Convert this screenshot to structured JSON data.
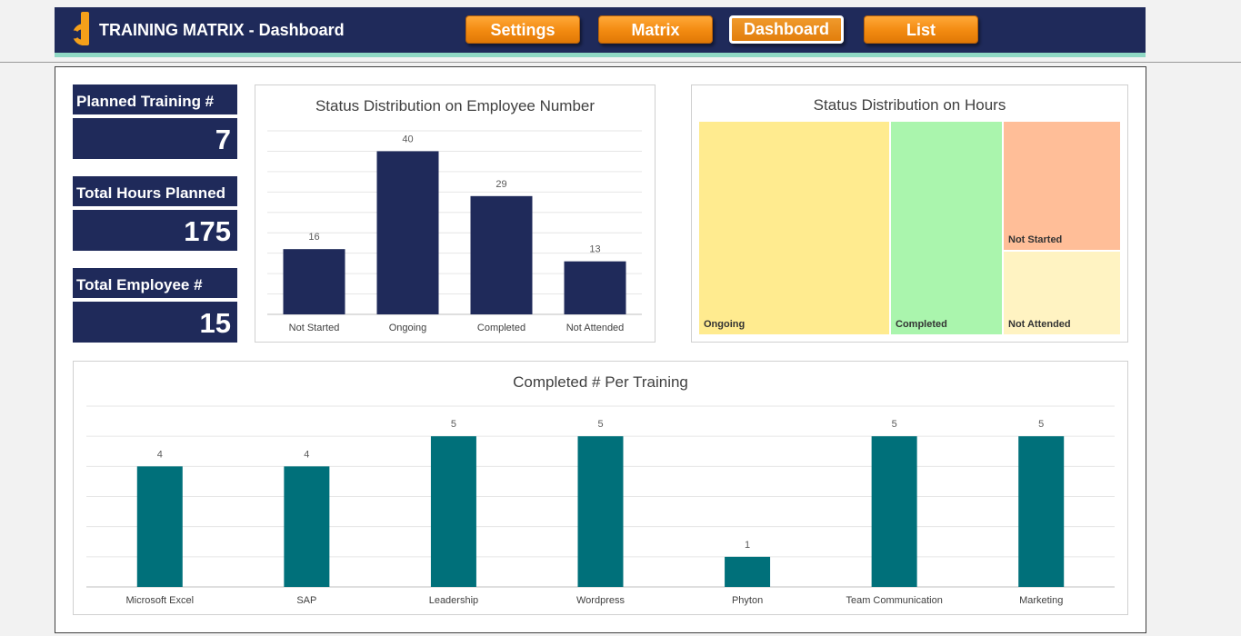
{
  "app": {
    "title": "TRAINING MATRIX - Dashboard",
    "logo_icon": "d-logo-icon",
    "logo_color": "#f5a01a"
  },
  "nav": [
    {
      "label": "Settings",
      "active": false
    },
    {
      "label": "Matrix",
      "active": false
    },
    {
      "label": "Dashboard",
      "active": true
    },
    {
      "label": "List",
      "active": false
    }
  ],
  "kpis": [
    {
      "label": "Planned Training #",
      "value": "7"
    },
    {
      "label": "Total Hours Planned",
      "value": "175"
    },
    {
      "label": "Total Employee #",
      "value": "15"
    }
  ],
  "colors": {
    "navy": "#1f2a5a",
    "teal": "#00707a",
    "accent_stripe": "#8fd8c4",
    "button_orange": "#f28a10"
  },
  "chart_data": [
    {
      "id": "status-employee",
      "type": "bar",
      "title": "Status Distribution on Employee Number",
      "categories": [
        "Not Started",
        "Ongoing",
        "Completed",
        "Not Attended"
      ],
      "values": [
        16,
        40,
        29,
        13
      ],
      "ylim": [
        0,
        45
      ],
      "grid": true,
      "color": "#1f2a5a"
    },
    {
      "id": "status-hours",
      "type": "treemap",
      "title": "Status Distribution on Hours",
      "items": [
        {
          "label": "Ongoing",
          "color": "#ffeb8f"
        },
        {
          "label": "Completed",
          "color": "#aaf5ad"
        },
        {
          "label": "Not Started",
          "color": "#ffbe98"
        },
        {
          "label": "Not Attended",
          "color": "#fff3c2"
        }
      ]
    },
    {
      "id": "completed-per-training",
      "type": "bar",
      "title": "Completed # Per Training",
      "categories": [
        "Microsoft Excel",
        "SAP",
        "Leadership",
        "Wordpress",
        "Phyton",
        "Team Communication",
        "Marketing"
      ],
      "values": [
        4,
        4,
        5,
        5,
        1,
        5,
        5
      ],
      "ylim": [
        0,
        6
      ],
      "grid": true,
      "color": "#00707a"
    }
  ]
}
